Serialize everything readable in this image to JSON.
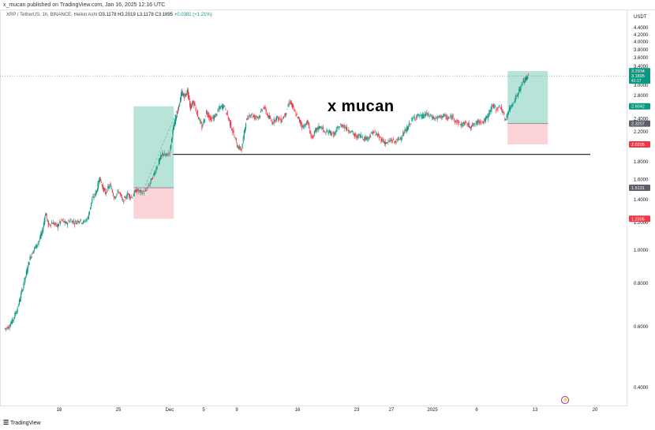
{
  "header": {
    "publisher": "x_mucan published on TradingView.com, Jan 16, 2025 12:16 UTC"
  },
  "legend": {
    "symbol": "XRP / TetherUS, 1h, BINANCE, Heikin Ashi",
    "open": "O3.1178",
    "high": "H3.2019",
    "low": "L3.1178",
    "close": "C3.1895",
    "change": "+0.0381 (+1.21%)"
  },
  "watermark": "x mucan",
  "currency": "USDT",
  "footer": {
    "brand": "TradingView"
  },
  "colors": {
    "up": "#089981",
    "down": "#f23645",
    "profit_zone": "#9fd9cb",
    "loss_zone": "#fbcdd1",
    "level_line": "#131722"
  },
  "chart_data": {
    "type": "candlestick",
    "style": "Heikin Ashi",
    "interval": "1h",
    "y_scale": "log",
    "y_ticks": [
      "4.4000",
      "4.2000",
      "4.0000",
      "3.8000",
      "3.6000",
      "3.4000",
      "3.2000",
      "3.0000",
      "2.8000",
      "2.6000",
      "2.4000",
      "2.2000",
      "2.0000",
      "1.8000",
      "1.6000",
      "1.4000",
      "1.2000",
      "1.0000",
      "0.8000",
      "0.6000",
      "0.4000"
    ],
    "x_ticks": [
      "18",
      "25",
      "Dec",
      "5",
      "9",
      "16",
      "23",
      "27",
      "2025",
      "6",
      "13",
      "20"
    ],
    "price_labels": [
      {
        "value": "3.2934",
        "color": "#089981"
      },
      {
        "value": "3.1977",
        "color": "#f23645"
      },
      {
        "value": "3.1895",
        "color": "#089981",
        "sub": "41:17"
      },
      {
        "value": "2.6042",
        "color": "#089981"
      },
      {
        "value": "2.3207",
        "color": "#5d606b"
      },
      {
        "value": "2.0205",
        "color": "#f23645"
      },
      {
        "value": "1.5131",
        "color": "#5d606b"
      },
      {
        "value": "1.2305",
        "color": "#f23645"
      }
    ],
    "series_path": [
      [
        0.0,
        0.59
      ],
      [
        0.6,
        0.6
      ],
      [
        1.2,
        0.63
      ],
      [
        1.8,
        0.68
      ],
      [
        2.4,
        0.76
      ],
      [
        3.0,
        0.86
      ],
      [
        3.5,
        0.95
      ],
      [
        4.0,
        1.0
      ],
      [
        4.6,
        1.05
      ],
      [
        5.2,
        1.13
      ],
      [
        5.6,
        1.28
      ],
      [
        6.0,
        1.18
      ],
      [
        6.6,
        1.2
      ],
      [
        7.2,
        1.17
      ],
      [
        7.8,
        1.22
      ],
      [
        8.4,
        1.19
      ],
      [
        9.0,
        1.22
      ],
      [
        9.6,
        1.2
      ],
      [
        10.2,
        1.22
      ],
      [
        10.8,
        1.2
      ],
      [
        11.4,
        1.24
      ],
      [
        12.0,
        1.4
      ],
      [
        12.6,
        1.48
      ],
      [
        13.0,
        1.62
      ],
      [
        13.4,
        1.52
      ],
      [
        13.8,
        1.46
      ],
      [
        14.4,
        1.54
      ],
      [
        15.0,
        1.42
      ],
      [
        15.6,
        1.48
      ],
      [
        16.2,
        1.38
      ],
      [
        16.8,
        1.45
      ],
      [
        17.4,
        1.42
      ],
      [
        18.0,
        1.49
      ],
      [
        18.6,
        1.47
      ],
      [
        19.2,
        1.47
      ],
      [
        19.8,
        1.55
      ],
      [
        20.4,
        1.65
      ],
      [
        21.0,
        1.78
      ],
      [
        21.6,
        1.9
      ],
      [
        22.0,
        1.87
      ],
      [
        22.6,
        1.92
      ],
      [
        23.0,
        2.2
      ],
      [
        23.4,
        2.42
      ],
      [
        23.8,
        2.58
      ],
      [
        24.2,
        2.85
      ],
      [
        24.6,
        2.78
      ],
      [
        25.0,
        2.88
      ],
      [
        25.4,
        2.58
      ],
      [
        25.8,
        2.7
      ],
      [
        26.4,
        2.45
      ],
      [
        27.0,
        2.26
      ],
      [
        27.6,
        2.52
      ],
      [
        28.2,
        2.38
      ],
      [
        28.8,
        2.44
      ],
      [
        29.4,
        2.58
      ],
      [
        30.0,
        2.62
      ],
      [
        30.6,
        2.4
      ],
      [
        31.2,
        2.2
      ],
      [
        31.8,
        2.0
      ],
      [
        32.4,
        1.95
      ],
      [
        33.0,
        2.35
      ],
      [
        33.6,
        2.48
      ],
      [
        34.2,
        2.42
      ],
      [
        34.8,
        2.44
      ],
      [
        35.4,
        2.6
      ],
      [
        36.0,
        2.44
      ],
      [
        36.6,
        2.34
      ],
      [
        37.2,
        2.42
      ],
      [
        37.8,
        2.37
      ],
      [
        38.4,
        2.48
      ],
      [
        39.0,
        2.7
      ],
      [
        39.6,
        2.52
      ],
      [
        40.2,
        2.38
      ],
      [
        40.8,
        2.27
      ],
      [
        41.4,
        2.35
      ],
      [
        42.0,
        2.1
      ],
      [
        42.6,
        2.23
      ],
      [
        43.2,
        2.28
      ],
      [
        43.8,
        2.18
      ],
      [
        44.4,
        2.2
      ],
      [
        45.0,
        2.15
      ],
      [
        45.6,
        2.26
      ],
      [
        46.2,
        2.3
      ],
      [
        46.8,
        2.24
      ],
      [
        47.4,
        2.2
      ],
      [
        48.0,
        2.12
      ],
      [
        48.6,
        2.15
      ],
      [
        49.2,
        2.1
      ],
      [
        49.8,
        2.12
      ],
      [
        50.4,
        2.2
      ],
      [
        51.0,
        2.14
      ],
      [
        51.6,
        2.08
      ],
      [
        52.2,
        2.03
      ],
      [
        52.8,
        2.08
      ],
      [
        53.4,
        2.05
      ],
      [
        54.0,
        2.1
      ],
      [
        54.6,
        2.18
      ],
      [
        55.2,
        2.28
      ],
      [
        55.8,
        2.4
      ],
      [
        56.4,
        2.45
      ],
      [
        57.0,
        2.43
      ],
      [
        57.6,
        2.47
      ],
      [
        58.2,
        2.44
      ],
      [
        58.8,
        2.4
      ],
      [
        59.4,
        2.42
      ],
      [
        60.0,
        2.45
      ],
      [
        60.6,
        2.4
      ],
      [
        61.2,
        2.43
      ],
      [
        61.8,
        2.35
      ],
      [
        62.4,
        2.3
      ],
      [
        63.0,
        2.33
      ],
      [
        63.6,
        2.28
      ],
      [
        64.2,
        2.3
      ],
      [
        64.8,
        2.36
      ],
      [
        65.4,
        2.35
      ],
      [
        66.0,
        2.42
      ],
      [
        66.6,
        2.62
      ],
      [
        67.2,
        2.56
      ],
      [
        67.8,
        2.6
      ],
      [
        68.4,
        2.38
      ],
      [
        69.0,
        2.55
      ],
      [
        69.6,
        2.7
      ],
      [
        70.2,
        2.85
      ],
      [
        70.8,
        3.05
      ],
      [
        71.2,
        3.12
      ],
      [
        71.6,
        3.2
      ]
    ],
    "horizontal_line": {
      "price": 1.89,
      "x_from": 23.0,
      "x_to": 80.0
    },
    "positions": [
      {
        "x_from": 17.6,
        "x_to": 23.1,
        "entry": 1.5131,
        "target": 2.6042,
        "stop": 1.2305
      },
      {
        "x_from": 68.7,
        "x_to": 74.2,
        "entry": 2.3207,
        "target": 3.2934,
        "stop": 2.0205
      }
    ],
    "projection": {
      "from": [
        19.0,
        1.5
      ],
      "to": [
        23.6,
        2.55
      ]
    }
  }
}
